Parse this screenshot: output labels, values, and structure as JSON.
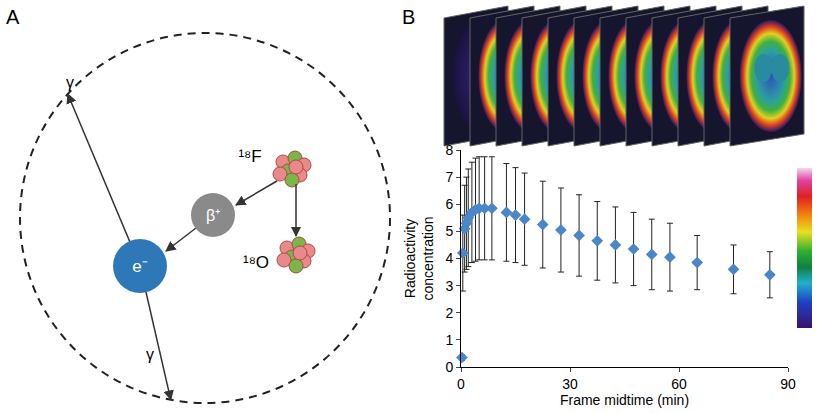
{
  "panel_labels": [
    "A",
    "B"
  ],
  "diagram": {
    "gamma": "γ",
    "parent": "¹⁸F",
    "positron": "β⁺",
    "electron": "e⁻",
    "daughter": "¹⁸O"
  },
  "chart_data": {
    "type": "scatter",
    "x_label": "Frame midtime (min)",
    "y_label": "Radioactivity concentration",
    "x": [
      0.25,
      0.5,
      1,
      1.5,
      2,
      3,
      4,
      5,
      6.5,
      8.5,
      12.5,
      15,
      17.5,
      22.5,
      27.5,
      32.5,
      37.5,
      42.5,
      47.5,
      52.5,
      57.5,
      65,
      75,
      85
    ],
    "values": [
      0.35,
      4.2,
      5.1,
      5.3,
      5.5,
      5.7,
      5.8,
      5.85,
      5.85,
      5.85,
      5.7,
      5.6,
      5.45,
      5.25,
      5.05,
      4.85,
      4.65,
      4.5,
      4.35,
      4.15,
      4.05,
      3.85,
      3.6,
      3.4
    ],
    "error": [
      0.1,
      1.4,
      1.6,
      1.7,
      1.8,
      1.85,
      1.9,
      1.9,
      1.9,
      1.9,
      1.8,
      1.75,
      1.7,
      1.6,
      1.55,
      1.5,
      1.45,
      1.4,
      1.35,
      1.3,
      1.25,
      1.0,
      0.9,
      0.85
    ],
    "color": "#4a86c8",
    "marker": "diamond",
    "xlim": [
      0,
      90
    ],
    "xticks": [
      0,
      30,
      60,
      90
    ],
    "ylim": [
      0,
      8
    ],
    "yticks": [
      0,
      1,
      2,
      3,
      4,
      5,
      6,
      7,
      8
    ],
    "grid": false
  }
}
